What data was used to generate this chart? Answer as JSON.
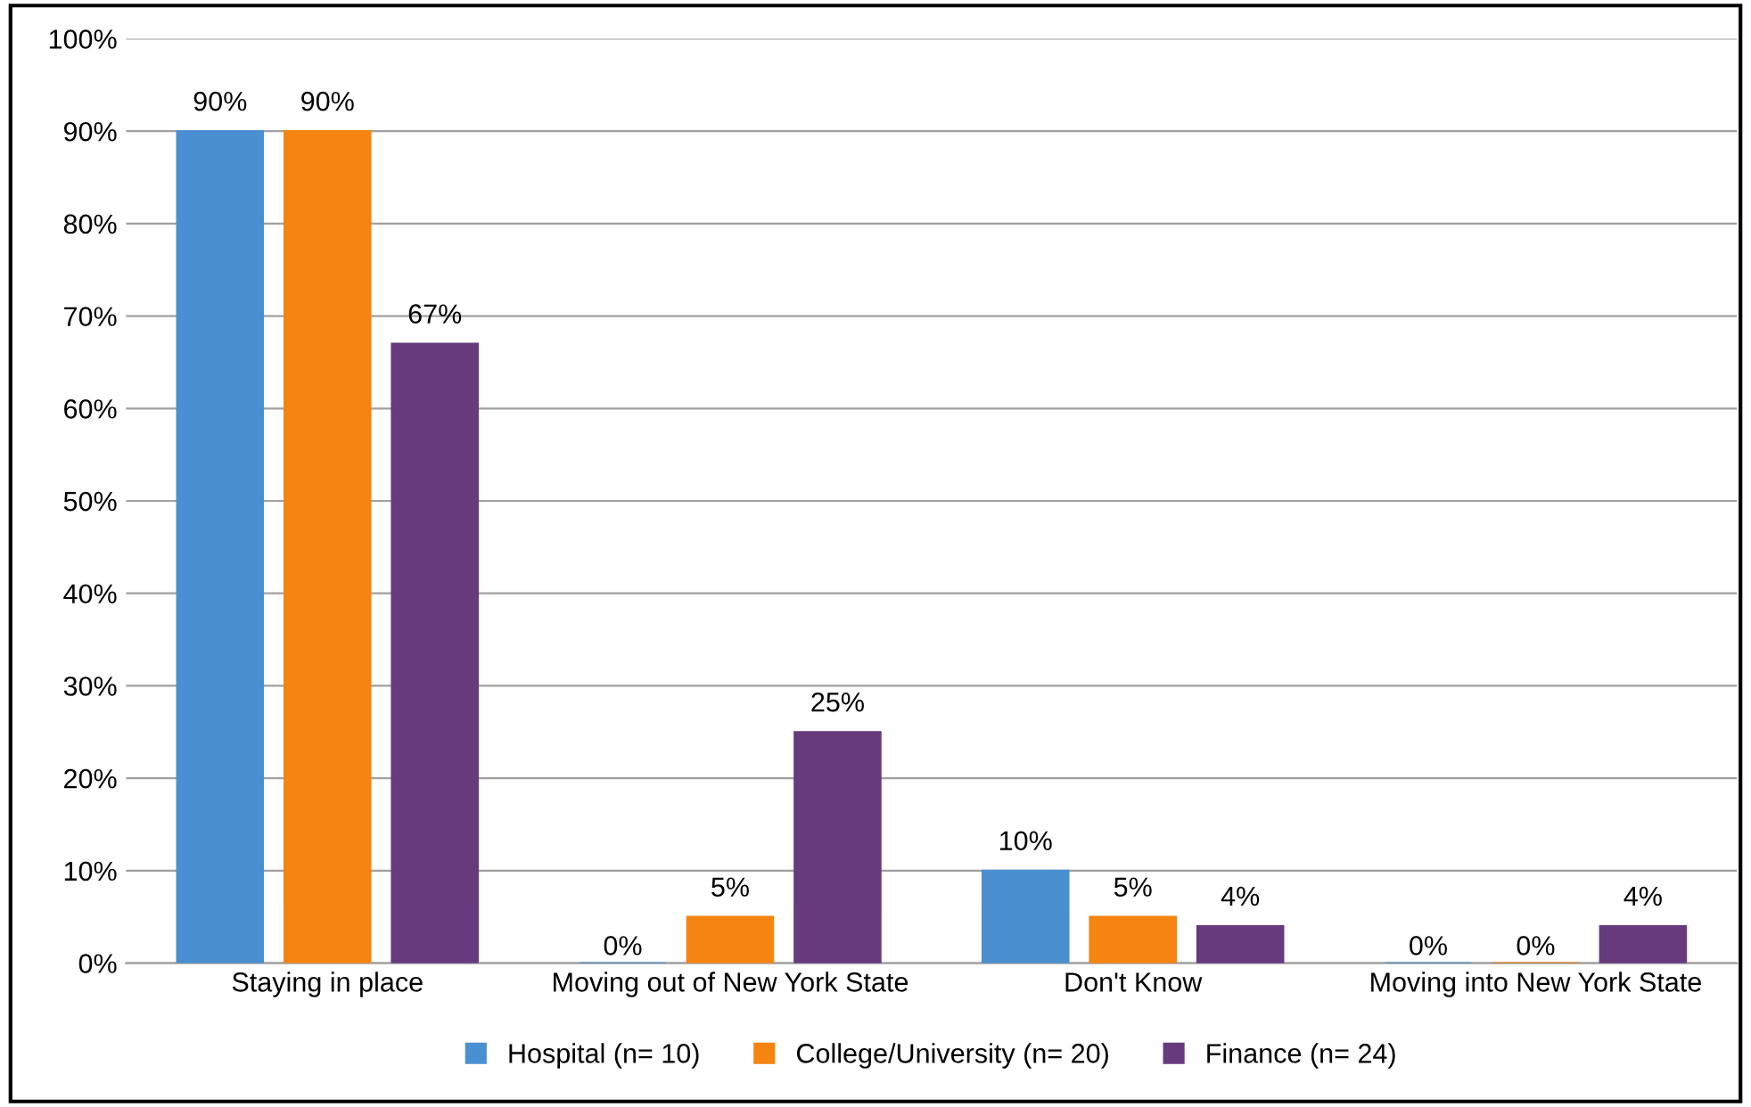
{
  "chart_data": {
    "type": "bar",
    "categories": [
      "Staying in place",
      "Moving out of New York State",
      "Don't Know",
      "Moving into New York State"
    ],
    "series": [
      {
        "name": "Hospital (n= 10)",
        "color": "#4a8fd0",
        "values": [
          90,
          0,
          10,
          0
        ],
        "value_labels": [
          "90%",
          "0%",
          "10%",
          "0%"
        ]
      },
      {
        "name": "College/University (n= 20)",
        "color": "#f58410",
        "values": [
          90,
          5,
          5,
          0
        ],
        "value_labels": [
          "90%",
          "5%",
          "5%",
          "0%"
        ]
      },
      {
        "name": "Finance (n= 24)",
        "color": "#673a7e",
        "values": [
          67,
          25,
          4,
          4
        ],
        "value_labels": [
          "67%",
          "25%",
          "4%",
          "4%"
        ]
      }
    ],
    "ylim": [
      0,
      100
    ],
    "yticks": [
      {
        "value": 0,
        "label": "0%"
      },
      {
        "value": 10,
        "label": "10%"
      },
      {
        "value": 20,
        "label": "20%"
      },
      {
        "value": 30,
        "label": "30%"
      },
      {
        "value": 40,
        "label": "40%"
      },
      {
        "value": 50,
        "label": "50%"
      },
      {
        "value": 60,
        "label": "60%"
      },
      {
        "value": 70,
        "label": "70%"
      },
      {
        "value": 80,
        "label": "80%"
      },
      {
        "value": 90,
        "label": "90%"
      },
      {
        "value": 100,
        "label": "100%"
      }
    ],
    "grid": "y",
    "legend": "bottom"
  }
}
